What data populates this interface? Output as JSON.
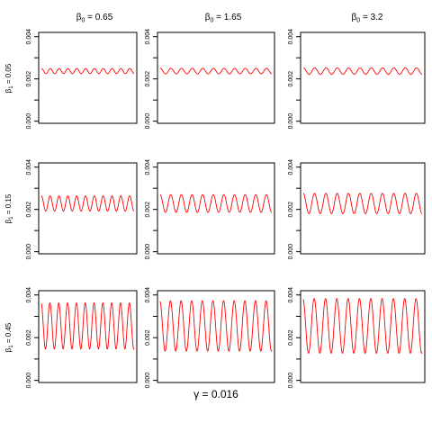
{
  "chart_data": {
    "type": "line",
    "layout": "3x3 small multiples",
    "xlabel": "γ = 0.016",
    "col_titles": [
      {
        "base": "β",
        "sub": "0",
        "rest": " = 0.65"
      },
      {
        "base": "β",
        "sub": "0",
        "rest": " = 1.65"
      },
      {
        "base": "β",
        "sub": "0",
        "rest": " = 3.2"
      }
    ],
    "row_titles": [
      {
        "base": "β",
        "sub": "1",
        "rest": " = 0.05"
      },
      {
        "base": "β",
        "sub": "1",
        "rest": " = 0.15"
      },
      {
        "base": "β",
        "sub": "1",
        "rest": " = 0.45"
      }
    ],
    "ylim": [
      -0.0001,
      0.0042
    ],
    "yticks": [
      0.0,
      0.002,
      0.004
    ],
    "ytick_labels": [
      "0.000",
      "0.002",
      "0.004"
    ],
    "y_minor_ticks": [
      0.001,
      0.003
    ],
    "series_color": "#ff0000",
    "panels": [
      {
        "row": 0,
        "col": 0,
        "center": 0.00237,
        "amplitude": 0.00012,
        "cycles": 10.5,
        "phase": 1.5
      },
      {
        "row": 0,
        "col": 1,
        "center": 0.00237,
        "amplitude": 0.00013,
        "cycles": 10.5,
        "phase": 1.5
      },
      {
        "row": 0,
        "col": 2,
        "center": 0.00237,
        "amplitude": 0.00015,
        "cycles": 10.5,
        "phase": 1.5
      },
      {
        "row": 1,
        "col": 0,
        "center": 0.00228,
        "amplitude": 0.00036,
        "cycles": 10.5,
        "phase": 1.6
      },
      {
        "row": 1,
        "col": 1,
        "center": 0.00228,
        "amplitude": 0.00042,
        "cycles": 10.5,
        "phase": 1.6
      },
      {
        "row": 1,
        "col": 2,
        "center": 0.00228,
        "amplitude": 0.00048,
        "cycles": 10.5,
        "phase": 1.6
      },
      {
        "row": 2,
        "col": 0,
        "center": 0.00255,
        "amplitude": 0.00108,
        "cycles": 10.5,
        "phase": 1.8
      },
      {
        "row": 2,
        "col": 1,
        "center": 0.00255,
        "amplitude": 0.00118,
        "cycles": 10.5,
        "phase": 1.8
      },
      {
        "row": 2,
        "col": 2,
        "center": 0.00255,
        "amplitude": 0.00128,
        "cycles": 10.5,
        "phase": 1.8
      }
    ]
  }
}
